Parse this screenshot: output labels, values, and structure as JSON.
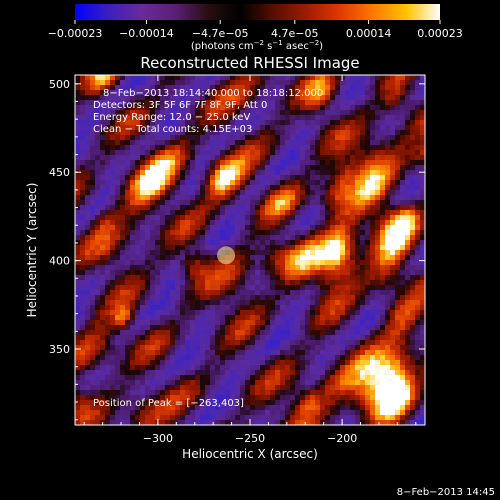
{
  "chart_data": {
    "type": "heatmap",
    "title": "Reconstructed RHESSI Image",
    "xlabel": "Heliocentric X (arcsec)",
    "ylabel": "Heliocentric Y (arcsec)",
    "xlim": [
      -345,
      -155
    ],
    "ylim": [
      307,
      505
    ],
    "x_ticks": [
      {
        "value": -300,
        "label": "−300"
      },
      {
        "value": -250,
        "label": "−250"
      },
      {
        "value": -200,
        "label": "−200"
      }
    ],
    "y_ticks": [
      {
        "value": 350,
        "label": "350"
      },
      {
        "value": 400,
        "label": "400"
      },
      {
        "value": 450,
        "label": "450"
      },
      {
        "value": 500,
        "label": "500"
      }
    ],
    "colorbar": {
      "range": [
        -0.00023,
        0.00023
      ],
      "ticks": [
        {
          "value": -0.00023,
          "label": "−0.00023"
        },
        {
          "value": -0.00014,
          "label": "−0.00014"
        },
        {
          "value": -4.7e-05,
          "label": "−4.7e−05"
        },
        {
          "value": 4.7e-05,
          "label": "4.7e−05"
        },
        {
          "value": 0.00014,
          "label": "0.00014"
        },
        {
          "value": 0.00023,
          "label": "0.00023"
        }
      ],
      "unit_main": "(photons cm",
      "unit_sup1": "−2",
      "unit_mid": " s",
      "unit_sup2": "−1",
      "unit_end": " asec",
      "unit_sup3": "−2",
      "unit_close": ")",
      "colors": [
        "#0000ff",
        "#3a1fbf",
        "#6a2a9a",
        "#5a2078",
        "#2a0d10",
        "#000000",
        "#5a0f00",
        "#a01c00",
        "#e03a00",
        "#ff7a00",
        "#ffc300",
        "#ffffff"
      ]
    },
    "annotations": {
      "time_range": "8−Feb−2013 18:14:40.000 to 18:18:12.000",
      "detectors": "Detectors: 3F 5F 6F 7F 8F 9F, Att 0",
      "energy": "Energy Range: 12.0 − 25.0 keV",
      "clean": "Clean − Total counts: 4.15E+03",
      "peak": "Position of Peak = [−263,403]"
    },
    "peak": {
      "x": -263,
      "y": 403
    },
    "footer_timestamp": "8−Feb−2013 14:45"
  }
}
